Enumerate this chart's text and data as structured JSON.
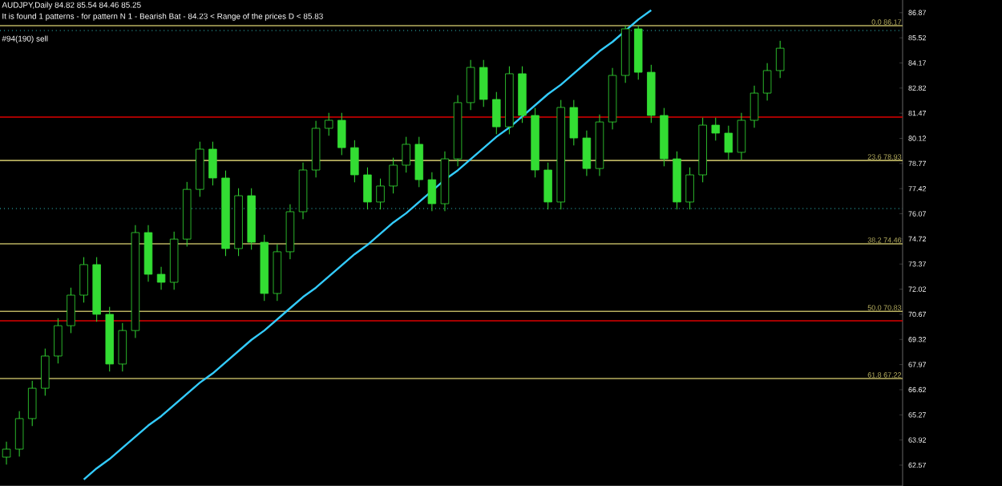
{
  "chart_data": {
    "type": "candlestick",
    "title": "AUDJPY,Daily  84.82 85.54 84.46 85.25",
    "subtitle": "It is found 1 patterns  -  for pattern N 1 - Bearish Bat - 84.23 < Range of the prices D < 85.83",
    "annotations": [
      "#94(190) sell"
    ],
    "categories": [
      null,
      null,
      null,
      null,
      null,
      null,
      null,
      null,
      null,
      null,
      null,
      null,
      null,
      null,
      null,
      null,
      null,
      null,
      null,
      null,
      null,
      null,
      null,
      null,
      null,
      null,
      null,
      null,
      null,
      null,
      null,
      null,
      null,
      null,
      null,
      null,
      null,
      null,
      null,
      null,
      null,
      null,
      null,
      null,
      null,
      null,
      null,
      null,
      null,
      null,
      null,
      null,
      null,
      null,
      null,
      null,
      null,
      null,
      null,
      null,
      null,
      null,
      null,
      null,
      null,
      null,
      null,
      null,
      null,
      null
    ],
    "color": "#33dd33",
    "ohlc": [
      [
        63.0,
        63.83,
        62.6,
        63.43
      ],
      [
        63.43,
        65.47,
        63.03,
        65.07
      ],
      [
        65.07,
        67.1,
        64.67,
        66.7
      ],
      [
        66.7,
        68.83,
        66.3,
        68.43
      ],
      [
        68.43,
        70.46,
        68.03,
        70.06
      ],
      [
        70.06,
        72.1,
        69.66,
        71.7
      ],
      [
        71.7,
        73.74,
        71.3,
        73.34
      ],
      [
        73.34,
        73.74,
        70.27,
        70.67
      ],
      [
        70.67,
        71.07,
        67.6,
        68.0
      ],
      [
        68.0,
        70.2,
        67.6,
        69.8
      ],
      [
        69.8,
        75.46,
        69.4,
        75.06
      ],
      [
        75.06,
        75.46,
        72.42,
        72.82
      ],
      [
        72.82,
        73.22,
        71.99,
        72.39
      ],
      [
        72.39,
        75.11,
        71.99,
        74.71
      ],
      [
        74.71,
        77.78,
        74.31,
        77.38
      ],
      [
        77.38,
        79.94,
        76.98,
        79.54
      ],
      [
        79.54,
        79.94,
        77.59,
        77.99
      ],
      [
        77.99,
        78.39,
        73.8,
        74.2
      ],
      [
        74.2,
        77.44,
        73.8,
        77.04
      ],
      [
        77.04,
        77.44,
        74.14,
        74.54
      ],
      [
        74.54,
        74.94,
        71.39,
        71.79
      ],
      [
        71.79,
        74.43,
        71.39,
        74.03
      ],
      [
        74.03,
        76.58,
        73.63,
        76.18
      ],
      [
        76.18,
        78.82,
        75.78,
        78.42
      ],
      [
        78.42,
        81.06,
        78.02,
        80.66
      ],
      [
        80.66,
        81.49,
        80.26,
        81.09
      ],
      [
        81.09,
        81.49,
        79.22,
        79.62
      ],
      [
        79.62,
        80.02,
        77.76,
        78.16
      ],
      [
        78.16,
        78.56,
        76.3,
        76.7
      ],
      [
        76.7,
        77.96,
        76.3,
        77.56
      ],
      [
        77.56,
        79.08,
        77.16,
        78.68
      ],
      [
        78.68,
        80.2,
        78.28,
        79.8
      ],
      [
        79.8,
        80.2,
        77.5,
        77.9
      ],
      [
        77.9,
        78.3,
        76.21,
        76.61
      ],
      [
        76.61,
        79.42,
        76.21,
        79.02
      ],
      [
        79.02,
        82.44,
        78.62,
        82.04
      ],
      [
        82.04,
        84.33,
        81.64,
        83.93
      ],
      [
        83.93,
        84.33,
        81.81,
        82.21
      ],
      [
        82.21,
        82.61,
        80.34,
        80.74
      ],
      [
        80.74,
        83.99,
        80.34,
        83.59
      ],
      [
        83.59,
        83.99,
        80.95,
        81.35
      ],
      [
        81.35,
        81.75,
        78.02,
        78.42
      ],
      [
        78.42,
        78.82,
        76.3,
        76.7
      ],
      [
        76.7,
        82.18,
        76.3,
        81.78
      ],
      [
        81.78,
        82.18,
        79.74,
        80.14
      ],
      [
        80.14,
        80.54,
        78.1,
        78.5
      ],
      [
        78.5,
        81.4,
        78.1,
        81.0
      ],
      [
        81.0,
        83.9,
        80.6,
        83.5
      ],
      [
        83.5,
        86.17,
        83.1,
        86.0
      ],
      [
        86.0,
        86.17,
        83.27,
        83.67
      ],
      [
        83.67,
        84.07,
        80.95,
        81.35
      ],
      [
        81.35,
        81.75,
        78.62,
        79.02
      ],
      [
        79.02,
        79.42,
        76.3,
        76.7
      ],
      [
        76.7,
        78.56,
        76.3,
        78.16
      ],
      [
        78.16,
        81.23,
        77.76,
        80.83
      ],
      [
        80.83,
        81.23,
        80.0,
        80.4
      ],
      [
        80.4,
        80.8,
        78.97,
        79.37
      ],
      [
        79.37,
        81.49,
        78.97,
        81.09
      ],
      [
        81.09,
        82.95,
        80.69,
        82.55
      ],
      [
        82.55,
        84.16,
        82.15,
        83.76
      ],
      [
        83.76,
        85.36,
        83.36,
        84.96
      ],
      null,
      null,
      null,
      null,
      null,
      null,
      null,
      null,
      null
    ],
    "series": [
      {
        "type": "line",
        "color": "#33ccff",
        "values": [
          null,
          null,
          null,
          null,
          null,
          null,
          61.8,
          62.4,
          62.9,
          63.5,
          64.1,
          64.7,
          65.2,
          65.8,
          66.4,
          67.0,
          67.5,
          68.1,
          68.7,
          69.3,
          69.8,
          70.4,
          71.0,
          71.6,
          72.1,
          72.7,
          73.3,
          73.9,
          74.4,
          75.0,
          75.6,
          76.1,
          76.7,
          77.3,
          77.9,
          78.4,
          79.0,
          79.6,
          80.2,
          80.7,
          81.3,
          81.9,
          82.5,
          83.0,
          83.6,
          84.2,
          84.8,
          85.3,
          85.9,
          86.5,
          87.0,
          null,
          null,
          null,
          null,
          null,
          null,
          null,
          null,
          null,
          null,
          null,
          null,
          null,
          null,
          null,
          null,
          null,
          null,
          null
        ]
      }
    ],
    "ylim": [
      61.45,
      87.55
    ],
    "yticks": [
      62.57,
      63.92,
      65.27,
      66.62,
      67.97,
      69.32,
      70.67,
      72.02,
      73.37,
      74.72,
      76.07,
      77.42,
      78.77,
      80.12,
      81.47,
      82.82,
      84.17,
      85.52,
      86.87
    ],
    "tick_labels": "y",
    "ref_lines": [
      {
        "axis": "y",
        "value": 86.17,
        "label": "0.0 86.17",
        "color": "#b8b060",
        "line_style": "solid"
      },
      {
        "axis": "y",
        "value": 78.93,
        "label": "23.6 78.93",
        "color": "#b8b060",
        "line_style": "solid"
      },
      {
        "axis": "y",
        "value": 74.46,
        "label": "38.2 74.46",
        "color": "#b8b060",
        "line_style": "solid"
      },
      {
        "axis": "y",
        "value": 70.83,
        "label": "50.0 70.83",
        "color": "#b8b060",
        "line_style": "solid"
      },
      {
        "axis": "y",
        "value": 67.22,
        "label": "61.8 67.22",
        "color": "#b8b060",
        "line_style": "solid"
      },
      {
        "axis": "y",
        "value": 81.26,
        "color": "#dd0000",
        "line_style": "solid"
      },
      {
        "axis": "y",
        "value": 70.32,
        "color": "#dd0000",
        "line_style": "solid"
      },
      {
        "axis": "y",
        "value": 85.91,
        "color": "#33cccc",
        "line_style": "dotted"
      },
      {
        "axis": "y",
        "value": 76.35,
        "color": "#33cccc",
        "line_style": "dotted"
      }
    ]
  }
}
